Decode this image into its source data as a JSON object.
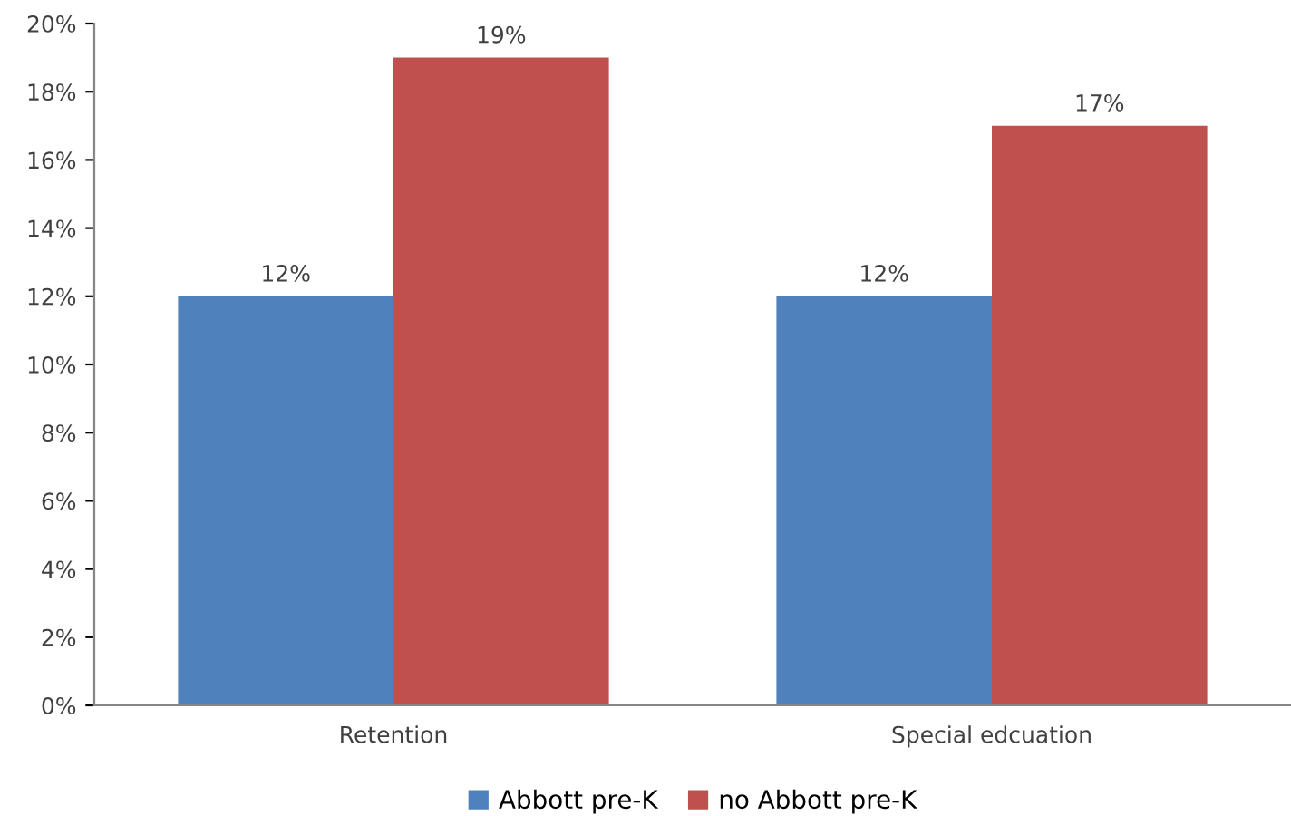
{
  "chart_data": {
    "type": "bar",
    "categories": [
      "Retention",
      "Special edcuation"
    ],
    "series": [
      {
        "name": "Abbott pre-K",
        "color": "#4f81bd",
        "values": [
          12,
          12
        ]
      },
      {
        "name": "no Abbott pre-K",
        "color": "#c0504d",
        "values": [
          19,
          17
        ]
      }
    ],
    "ylim": [
      0,
      20
    ],
    "yticks": [
      {
        "value": 0,
        "label": "0%"
      },
      {
        "value": 2,
        "label": "2%"
      },
      {
        "value": 4,
        "label": "4%"
      },
      {
        "value": 6,
        "label": "6%"
      },
      {
        "value": 8,
        "label": "8%"
      },
      {
        "value": 10,
        "label": "10%"
      },
      {
        "value": 12,
        "label": "12%"
      },
      {
        "value": 14,
        "label": "14%"
      },
      {
        "value": 16,
        "label": "16%"
      },
      {
        "value": 18,
        "label": "18%"
      },
      {
        "value": 20,
        "label": "20%"
      }
    ],
    "value_labels": [
      [
        "12%",
        "12%"
      ],
      [
        "19%",
        "17%"
      ]
    ],
    "legend": "bottom",
    "grid": false
  }
}
